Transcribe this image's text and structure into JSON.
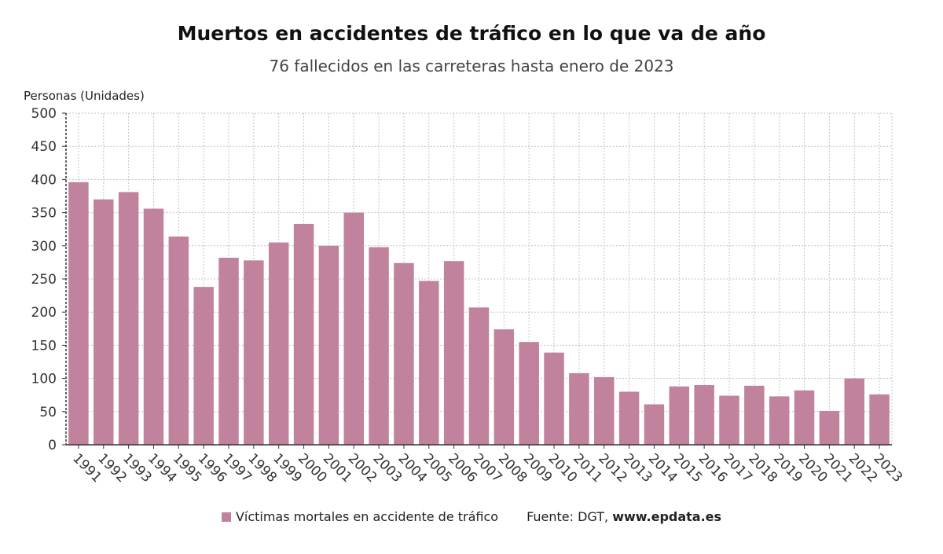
{
  "chart_data": {
    "type": "bar",
    "title": "Muertos en accidentes de tráfico en lo que va de año",
    "subtitle": "76 fallecidos en las carreteras hasta enero de 2023",
    "ylabel": "Personas (Unidades)",
    "xlabel": "",
    "ylim": [
      0,
      500
    ],
    "yticks": [
      0,
      50,
      100,
      150,
      200,
      250,
      300,
      350,
      400,
      450,
      500
    ],
    "grid": true,
    "legend_position": "bottom",
    "categories": [
      "1991",
      "1992",
      "1993",
      "1994",
      "1995",
      "1996",
      "1997",
      "1998",
      "1999",
      "2000",
      "2001",
      "2002",
      "2003",
      "2004",
      "2005",
      "2006",
      "2007",
      "2008",
      "2009",
      "2010",
      "2011",
      "2012",
      "2013",
      "2014",
      "2015",
      "2016",
      "2017",
      "2018",
      "2019",
      "2020",
      "2021",
      "2022",
      "2023"
    ],
    "series": [
      {
        "name": "Víctimas mortales en accidente de tráfico",
        "color": "#c0829d",
        "values": [
          396,
          370,
          381,
          356,
          314,
          238,
          282,
          278,
          305,
          333,
          300,
          350,
          298,
          274,
          247,
          277,
          207,
          174,
          155,
          139,
          108,
          102,
          80,
          61,
          88,
          90,
          74,
          89,
          73,
          82,
          51,
          100,
          76
        ]
      }
    ]
  },
  "footer": {
    "legend_label": "Víctimas mortales en accidente de tráfico",
    "source_prefix": "Fuente: DGT, ",
    "source_site": "www.epdata.es"
  }
}
